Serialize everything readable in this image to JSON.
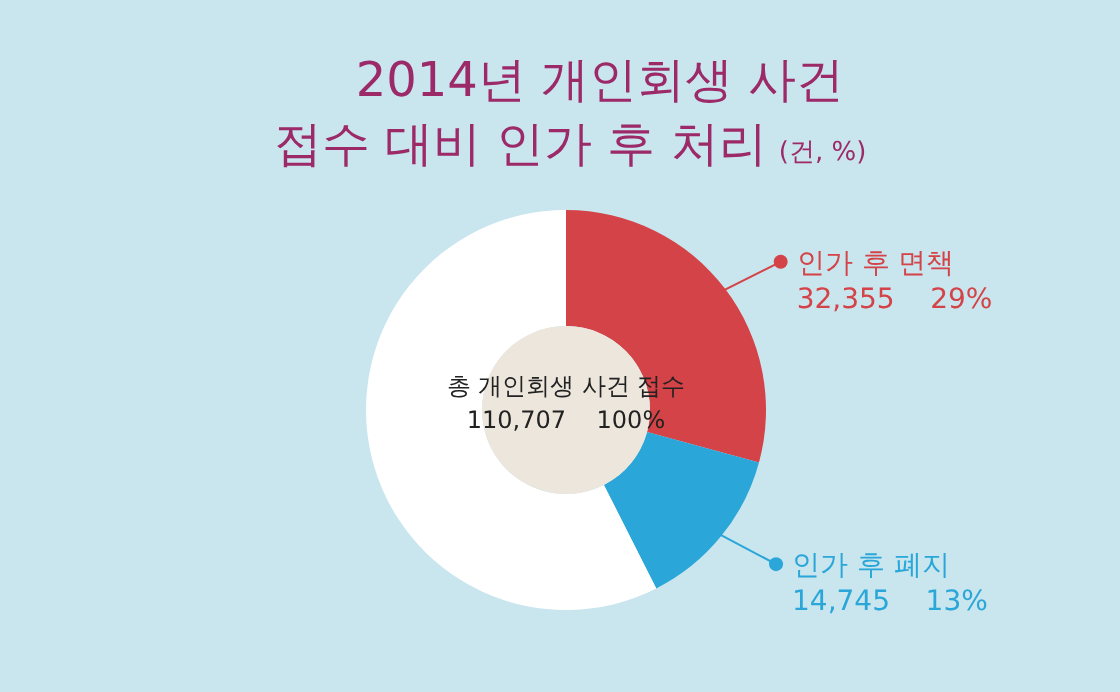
{
  "chart_data": {
    "type": "donut",
    "title": "2014년 개인회생 사건\n접수 대비 인가 후 처리",
    "subtitle": "(건, %)",
    "categories": [
      "인가 후 면책",
      "인가 후 폐지",
      null
    ],
    "values": [
      32355,
      14745,
      63607
    ],
    "value_labels": [
      "32,355    29%",
      "14,745    13%",
      null
    ],
    "colors": [
      "#d44347",
      "#2aa6d9",
      "#ffffff"
    ],
    "annotations": [
      "총 개인회생 사건 접수\n110,707    100%"
    ],
    "legend": "right"
  }
}
